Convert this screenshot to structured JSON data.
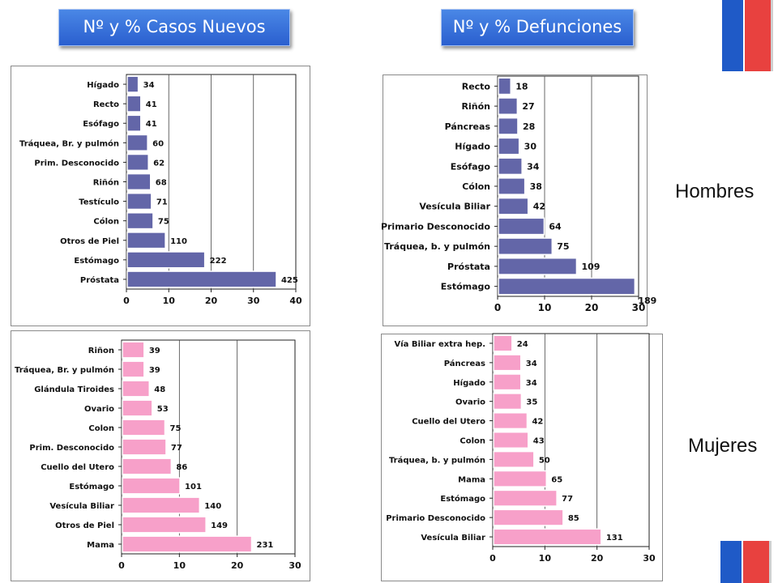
{
  "headers": {
    "left": "Nº y % Casos Nuevos",
    "right": "Nº y % Defunciones"
  },
  "side_labels": {
    "men": "Hombres",
    "women": "Mujeres"
  },
  "colors": {
    "men_bar": "#6366a8",
    "women_bar": "#f7a0c9",
    "flag_blue": "#1f5ac7",
    "flag_red": "#e8413f",
    "header_bg": "#3a71dc"
  },
  "chart_data": [
    {
      "id": "casos-hombres",
      "type": "bar",
      "orientation": "horizontal",
      "categories": [
        "Hígado",
        "Recto",
        "Esófago",
        "Tráquea, Br. y pulmón",
        "Prim. Desconocido",
        "Riñón",
        "Testículo",
        "Cólon",
        "Otros  de Piel",
        "Estómago",
        "Próstata"
      ],
      "series": [
        {
          "values": [
            2.8,
            3.4,
            3.4,
            5.0,
            5.2,
            5.7,
            5.9,
            6.3,
            9.2,
            18.5,
            35.4
          ]
        }
      ],
      "data_labels": [
        "34",
        "41",
        "41",
        "60",
        "62",
        "68",
        "71",
        "75",
        "110",
        "222",
        "425"
      ],
      "xlim": [
        0,
        40
      ],
      "xticks": [
        "0",
        "10",
        "20",
        "30",
        "40"
      ],
      "grid": true
    },
    {
      "id": "defunciones-hombres",
      "type": "bar",
      "orientation": "horizontal",
      "categories": [
        "Recto",
        "Riñón",
        "Páncreas",
        "Hígado",
        "Esófago",
        "Cólon",
        "Vesícula Biliar",
        "Primario Desconocido",
        "Tráquea, b. y pulmón",
        "Próstata",
        "Estómago"
      ],
      "series": [
        {
          "values": [
            2.8,
            4.2,
            4.3,
            4.6,
            5.2,
            5.8,
            6.5,
            9.9,
            11.6,
            16.8,
            29.2
          ]
        }
      ],
      "data_labels": [
        "18",
        "27",
        "28",
        "30",
        "34",
        "38",
        "42",
        "64",
        "75",
        "109",
        "189"
      ],
      "xlim": [
        0,
        30
      ],
      "xticks": [
        "0",
        "10",
        "20",
        "30"
      ],
      "grid": true
    },
    {
      "id": "casos-mujeres",
      "type": "bar",
      "orientation": "horizontal",
      "categories": [
        "Riñon",
        "Tráquea, Br. y pulmón",
        "Glándula Tiroides",
        "Ovario",
        "Colon",
        "Prim. Desconocido",
        "Cuello del Utero",
        "Estómago",
        "Vesícula Biliar",
        "Otros de Piel",
        "Mama"
      ],
      "series": [
        {
          "values": [
            3.9,
            3.9,
            4.8,
            5.3,
            7.5,
            7.7,
            8.6,
            10.1,
            13.5,
            14.6,
            22.5
          ]
        }
      ],
      "data_labels": [
        "39",
        "39",
        "48",
        "53",
        "75",
        "77",
        "86",
        "101",
        "140",
        "149",
        "231"
      ],
      "xlim": [
        0,
        30
      ],
      "xticks": [
        "0",
        "10",
        "20",
        "30"
      ],
      "grid": true
    },
    {
      "id": "defunciones-mujeres",
      "type": "bar",
      "orientation": "horizontal",
      "categories": [
        "Vía Biliar extra hep.",
        "Páncreas",
        "Hígado",
        "Ovario",
        "Cuello del Utero",
        "Colon",
        "Tráquea, b. y pulmón",
        "Mama",
        "Estómago",
        "Primario Desconocido",
        "Vesícula Biliar"
      ],
      "series": [
        {
          "values": [
            3.7,
            5.4,
            5.4,
            5.5,
            6.6,
            6.8,
            7.9,
            10.3,
            12.3,
            13.5,
            20.8
          ]
        }
      ],
      "data_labels": [
        "24",
        "34",
        "34",
        "35",
        "42",
        "43",
        "50",
        "65",
        "77",
        "85",
        "131"
      ],
      "xlim": [
        0,
        30
      ],
      "xticks": [
        "0",
        "10",
        "20",
        "30"
      ],
      "grid": true
    }
  ]
}
